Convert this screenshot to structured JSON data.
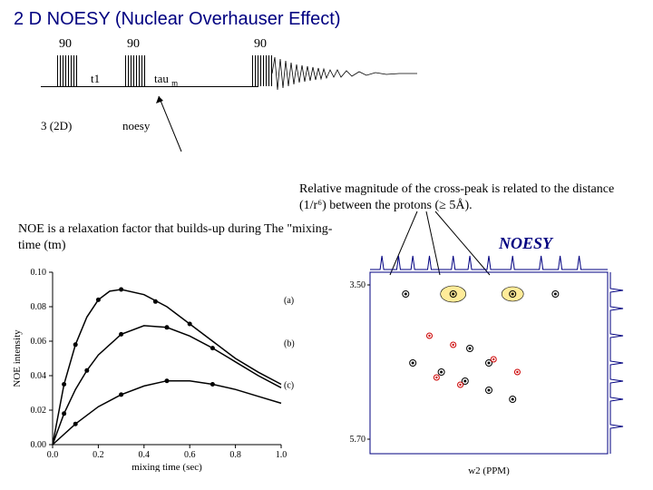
{
  "title": "2 D NOESY (Nuclear Overhauser Effect)",
  "pulse_sequence": {
    "pulses": [
      {
        "x": 40,
        "label": "90"
      },
      {
        "x": 115,
        "label": "90"
      },
      {
        "x": 255,
        "label": "90"
      }
    ],
    "t1_label": "t1",
    "tau_label": "tau",
    "tau_sub": "m",
    "caption_left": "3 (2D)",
    "caption_mid": "noesy"
  },
  "relative_text": "Relative magnitude of the cross-peak is related to the distance (1/r⁶) between the protons (≥ 5Å).",
  "noe_text": "NOE is a relaxation factor that builds-up during The \"mixing-time (tm)",
  "noesy_label": "NOESY",
  "noe_chart": {
    "ylabel": "NOE intensity",
    "xlabel": "mixing time (sec)",
    "xlim": [
      0,
      1.0
    ],
    "ylim": [
      0,
      0.1
    ],
    "xticks": [
      0.0,
      0.2,
      0.4,
      0.6,
      0.8,
      1.0
    ],
    "yticks": [
      0.0,
      0.02,
      0.04,
      0.06,
      0.08,
      0.1
    ],
    "curves": {
      "a": {
        "label": "(a)",
        "points": [
          [
            0,
            0
          ],
          [
            0.05,
            0.035
          ],
          [
            0.1,
            0.058
          ],
          [
            0.15,
            0.074
          ],
          [
            0.2,
            0.084
          ],
          [
            0.25,
            0.089
          ],
          [
            0.3,
            0.09
          ],
          [
            0.4,
            0.087
          ],
          [
            0.5,
            0.08
          ],
          [
            0.6,
            0.07
          ],
          [
            0.7,
            0.06
          ],
          [
            0.8,
            0.05
          ],
          [
            0.9,
            0.042
          ],
          [
            1.0,
            0.035
          ]
        ],
        "markers": [
          [
            0.05,
            0.035
          ],
          [
            0.1,
            0.058
          ],
          [
            0.2,
            0.084
          ],
          [
            0.3,
            0.09
          ],
          [
            0.45,
            0.083
          ],
          [
            0.6,
            0.07
          ]
        ]
      },
      "b": {
        "label": "(b)",
        "points": [
          [
            0,
            0
          ],
          [
            0.05,
            0.018
          ],
          [
            0.1,
            0.032
          ],
          [
            0.15,
            0.043
          ],
          [
            0.2,
            0.052
          ],
          [
            0.3,
            0.064
          ],
          [
            0.4,
            0.069
          ],
          [
            0.5,
            0.068
          ],
          [
            0.6,
            0.063
          ],
          [
            0.7,
            0.056
          ],
          [
            0.8,
            0.048
          ],
          [
            0.9,
            0.04
          ],
          [
            1.0,
            0.033
          ]
        ],
        "markers": [
          [
            0.05,
            0.018
          ],
          [
            0.15,
            0.043
          ],
          [
            0.3,
            0.064
          ],
          [
            0.5,
            0.068
          ],
          [
            0.7,
            0.056
          ]
        ]
      },
      "c": {
        "label": "(c)",
        "points": [
          [
            0,
            0
          ],
          [
            0.1,
            0.012
          ],
          [
            0.2,
            0.022
          ],
          [
            0.3,
            0.029
          ],
          [
            0.4,
            0.034
          ],
          [
            0.5,
            0.037
          ],
          [
            0.6,
            0.037
          ],
          [
            0.7,
            0.035
          ],
          [
            0.8,
            0.032
          ],
          [
            0.9,
            0.028
          ],
          [
            1.0,
            0.024
          ]
        ],
        "markers": [
          [
            0.1,
            0.012
          ],
          [
            0.3,
            0.029
          ],
          [
            0.5,
            0.037
          ],
          [
            0.7,
            0.035
          ]
        ]
      }
    }
  },
  "noesy_plot": {
    "xlabel": "w2 (PPM)",
    "y_ticks": [
      "3.50",
      "5.70"
    ],
    "peak_colors": {
      "black": "#000000",
      "red": "#cc0000"
    },
    "highlight": "#ffeb99",
    "peaks_black": [
      [
        0.15,
        0.12
      ],
      [
        0.35,
        0.12
      ],
      [
        0.6,
        0.12
      ],
      [
        0.78,
        0.12
      ],
      [
        0.18,
        0.5
      ],
      [
        0.3,
        0.55
      ],
      [
        0.4,
        0.6
      ],
      [
        0.5,
        0.65
      ],
      [
        0.6,
        0.7
      ],
      [
        0.42,
        0.42
      ],
      [
        0.5,
        0.5
      ]
    ],
    "peaks_red": [
      [
        0.25,
        0.35
      ],
      [
        0.35,
        0.4
      ],
      [
        0.28,
        0.58
      ],
      [
        0.38,
        0.62
      ],
      [
        0.52,
        0.48
      ],
      [
        0.62,
        0.55
      ]
    ]
  }
}
